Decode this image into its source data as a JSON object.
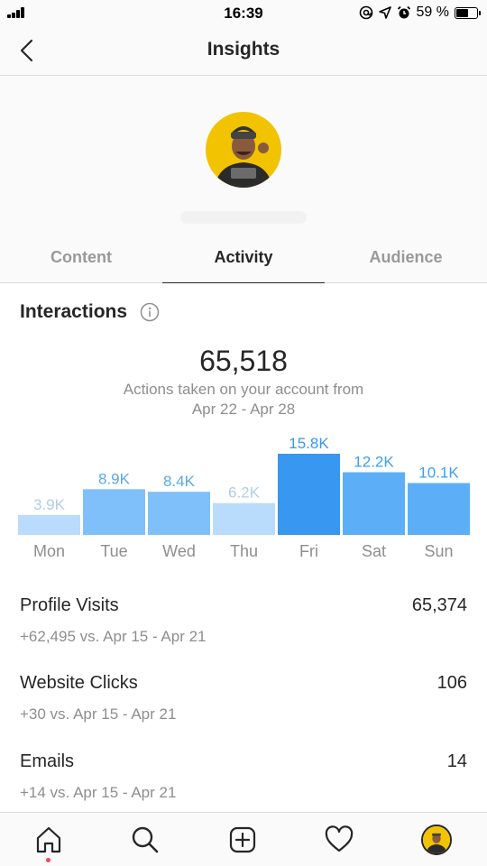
{
  "status_bar": {
    "time": "16:39",
    "battery_percent": "59 %",
    "battery_level": 0.59,
    "icons": [
      "signal-icon",
      "at-icon",
      "location-icon",
      "alarm-icon",
      "battery-icon"
    ]
  },
  "nav": {
    "title": "Insights",
    "back_icon": "chevron-left-icon"
  },
  "tabs": [
    {
      "label": "Content",
      "active": false
    },
    {
      "label": "Activity",
      "active": true
    },
    {
      "label": "Audience",
      "active": false
    }
  ],
  "interactions": {
    "title": "Interactions",
    "total": "65,518",
    "caption": "Actions taken on your account from",
    "date_range": "Apr 22 - Apr 28"
  },
  "chart_data": {
    "type": "bar",
    "categories": [
      "Mon",
      "Tue",
      "Wed",
      "Thu",
      "Fri",
      "Sat",
      "Sun"
    ],
    "values": [
      3.9,
      8.9,
      8.4,
      6.2,
      15.8,
      12.2,
      10.1
    ],
    "labels": [
      "3.9K",
      "8.9K",
      "8.4K",
      "6.2K",
      "15.8K",
      "12.2K",
      "10.1K"
    ],
    "highlight_index": 4,
    "colors": [
      "#b9dcfc",
      "#7fc0fa",
      "#7fc0fa",
      "#b9dcfc",
      "#3897f0",
      "#5caff7",
      "#5caff7"
    ],
    "label_colors": [
      "#b2cde6",
      "#5aa8ec",
      "#5aa8ec",
      "#b2cde6",
      "#3897f0",
      "#3f9ef2",
      "#3f9ef2"
    ],
    "axis_color": "#8e8e8e",
    "ylim": [
      0,
      15.8
    ]
  },
  "metrics": [
    {
      "label": "Profile Visits",
      "value": "65,374",
      "delta": "+62,495 vs. Apr 15 - Apr 21"
    },
    {
      "label": "Website Clicks",
      "value": "106",
      "delta": "+30 vs. Apr 15 - Apr 21"
    },
    {
      "label": "Emails",
      "value": "14",
      "delta": "+14 vs. Apr 15 - Apr 21"
    }
  ],
  "bottom_nav": {
    "items": [
      "home-icon",
      "search-icon",
      "add-post-icon",
      "heart-icon",
      "profile-avatar"
    ],
    "notification_color": "#ed4956"
  }
}
